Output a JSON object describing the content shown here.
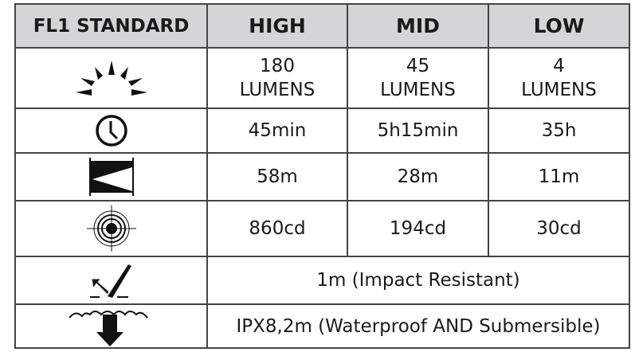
{
  "header": {
    "spec": "FL1 STANDARD",
    "modes": [
      "HIGH",
      "MID",
      "LOW"
    ]
  },
  "rows": [
    {
      "icon": "light-output-icon",
      "values": [
        [
          "180",
          "LUMENS"
        ],
        [
          "45",
          "LUMENS"
        ],
        [
          "4",
          "LUMENS"
        ]
      ]
    },
    {
      "icon": "clock-icon",
      "values": [
        "45min",
        "5h15min",
        "35h"
      ]
    },
    {
      "icon": "beam-distance-icon",
      "values": [
        "58m",
        "28m",
        "11m"
      ]
    },
    {
      "icon": "target-intensity-icon",
      "values": [
        "860cd",
        "194cd",
        "30cd"
      ]
    },
    {
      "icon": "impact-resistance-icon",
      "merged": "1m (Impact Resistant)"
    },
    {
      "icon": "waterproof-icon",
      "merged": "IPX8,2m (Waterproof AND Submersible)"
    }
  ]
}
